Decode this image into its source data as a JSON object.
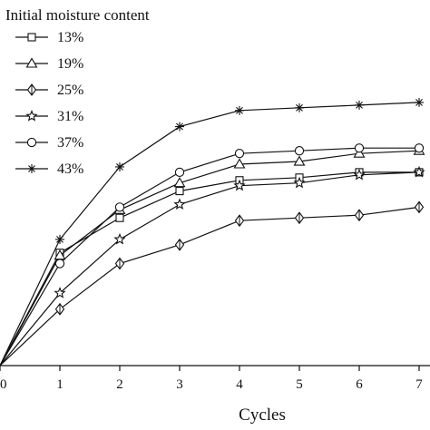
{
  "chart_data": {
    "type": "line",
    "x": [
      0,
      1,
      2,
      3,
      4,
      5,
      6,
      7
    ],
    "xlabel": "Cycles",
    "ylabel": "",
    "xlim": [
      0,
      7
    ],
    "ylim": [
      0,
      1
    ],
    "x_ticks": [
      "0",
      "1",
      "2",
      "3",
      "4",
      "5",
      "6",
      "7"
    ],
    "grid": false,
    "legend_title": "Initial moisture content",
    "legend_position": "top-left",
    "series": [
      {
        "name": "13%",
        "marker": "square",
        "values": [
          0.0,
          0.42,
          0.55,
          0.65,
          0.69,
          0.7,
          0.72,
          0.72
        ]
      },
      {
        "name": "19%",
        "marker": "triangle",
        "values": [
          0.0,
          0.41,
          0.58,
          0.68,
          0.75,
          0.76,
          0.79,
          0.8
        ]
      },
      {
        "name": "25%",
        "marker": "diamond",
        "values": [
          0.0,
          0.21,
          0.38,
          0.45,
          0.54,
          0.55,
          0.56,
          0.59
        ]
      },
      {
        "name": "31%",
        "marker": "star",
        "values": [
          0.0,
          0.27,
          0.47,
          0.6,
          0.67,
          0.68,
          0.71,
          0.72
        ]
      },
      {
        "name": "37%",
        "marker": "circle",
        "values": [
          0.0,
          0.38,
          0.59,
          0.72,
          0.79,
          0.8,
          0.81,
          0.81
        ]
      },
      {
        "name": "43%",
        "marker": "asterisk",
        "values": [
          0.0,
          0.47,
          0.74,
          0.89,
          0.95,
          0.96,
          0.97,
          0.98
        ]
      }
    ]
  }
}
